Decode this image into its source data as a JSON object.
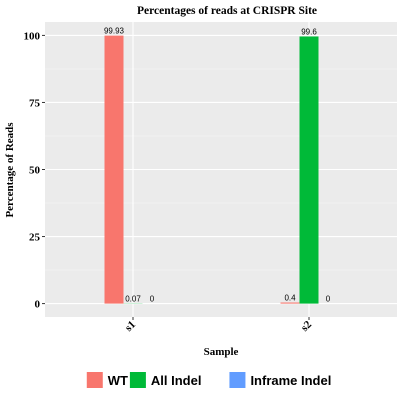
{
  "chart_data": {
    "type": "bar",
    "title": "Percentages of reads at CRISPR Site",
    "xlabel": "Sample",
    "ylabel": "Percentage of Reads",
    "categories": [
      "s1",
      "s2"
    ],
    "series": [
      {
        "name": "WT",
        "color": "#F8766D",
        "values": [
          99.93,
          0.4
        ],
        "labels": [
          "99.93",
          "0.4"
        ]
      },
      {
        "name": "All Indel",
        "color": "#00BA38",
        "values": [
          0.07,
          99.6
        ],
        "labels": [
          "0.07",
          "99.6"
        ]
      },
      {
        "name": "Inframe Indel",
        "color": "#619CFF",
        "values": [
          0,
          0
        ],
        "labels": [
          "0",
          "0"
        ]
      }
    ],
    "ylim": [
      -5,
      105
    ],
    "yticks": [
      0,
      25,
      50,
      75,
      100
    ],
    "grid": true,
    "panel_background": "#EBEBEB",
    "legend_position": "bottom"
  }
}
